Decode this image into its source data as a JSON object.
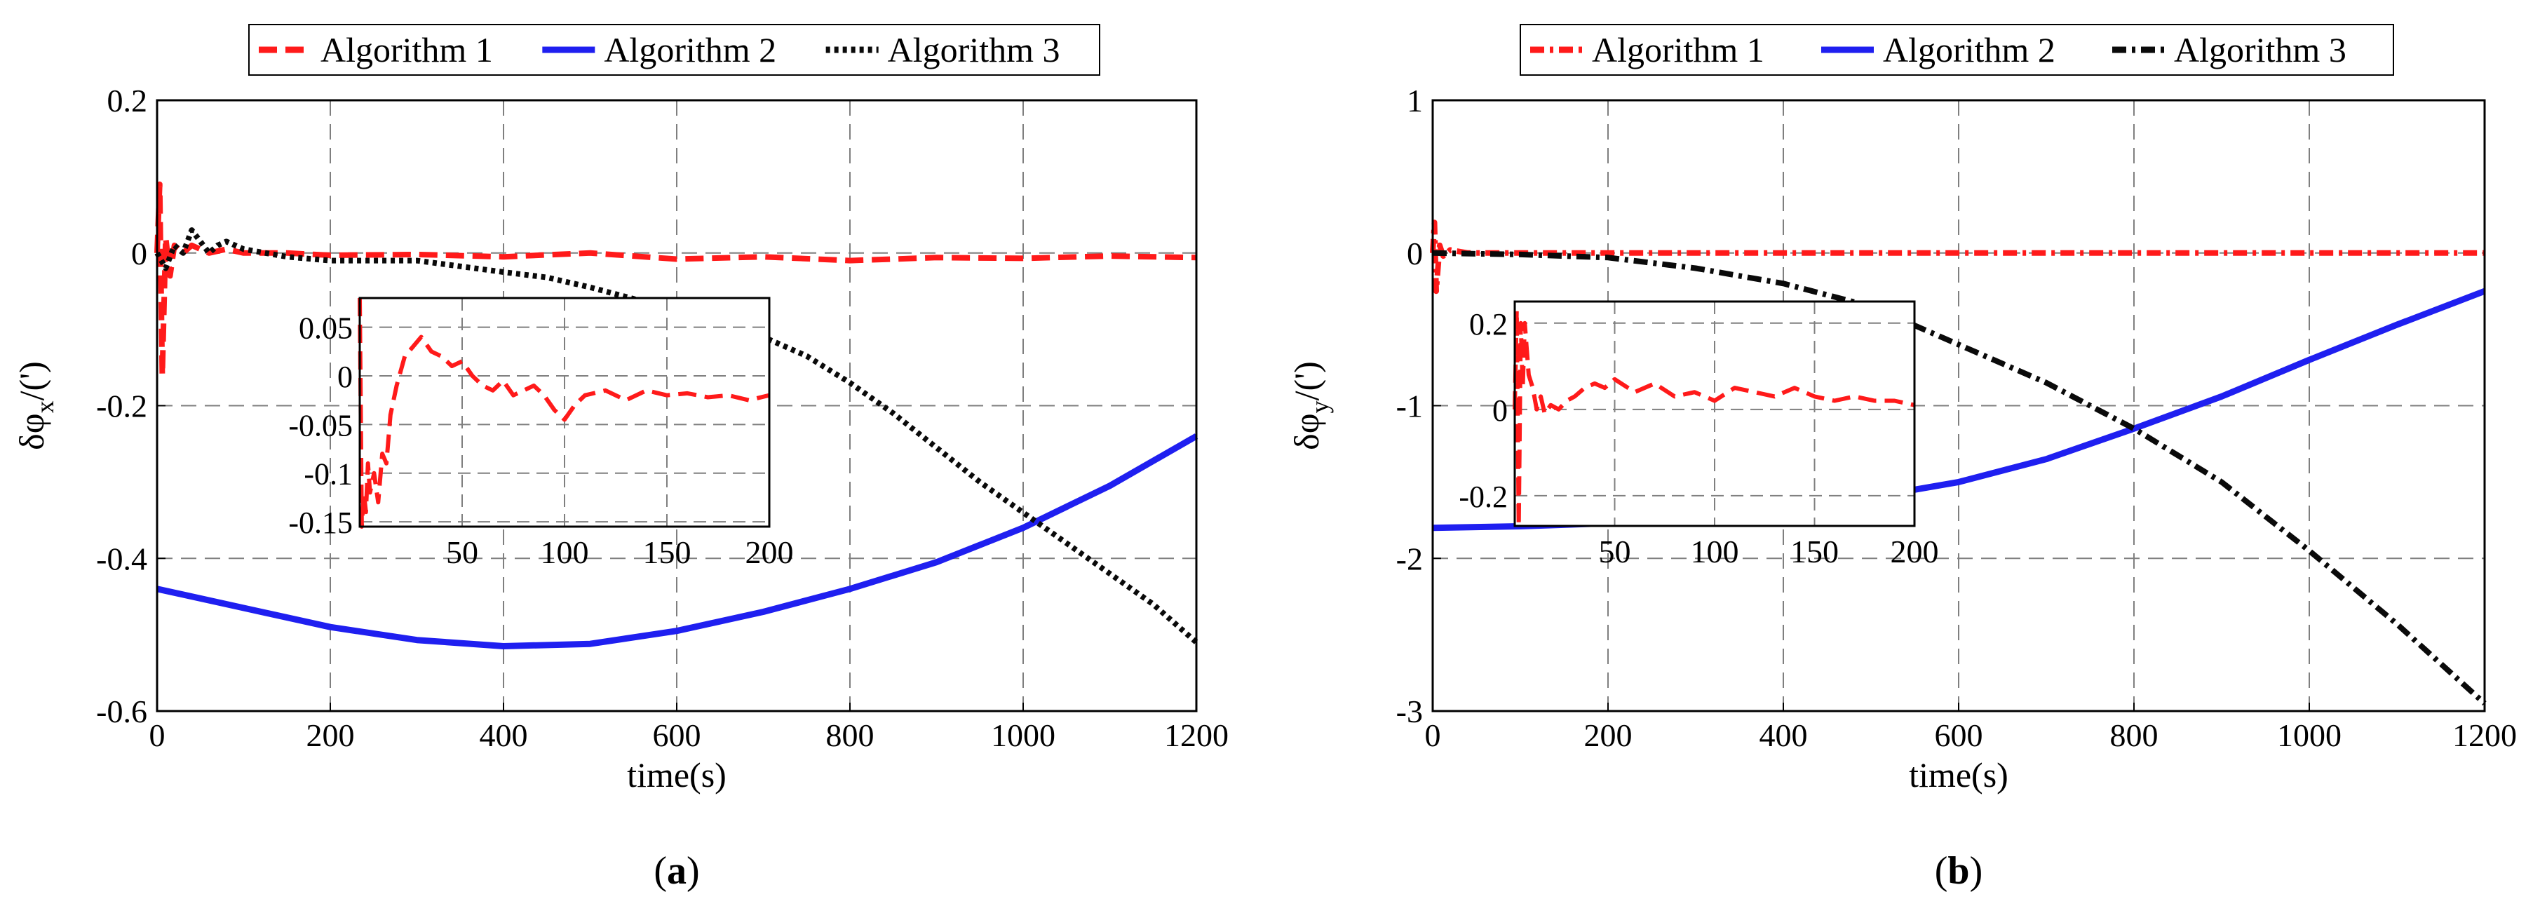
{
  "figure": {
    "panels": [
      "(a)",
      "(b)"
    ]
  },
  "colors": {
    "algorithm1": "#ff1a1a",
    "algorithm2": "#1f1ff0",
    "algorithm3": "#0a0a0a",
    "grid": "#7f7f7f"
  },
  "chart_data": [
    {
      "type": "line",
      "panel_label": "(a)",
      "xlabel": "time(s)",
      "ylabel_base": "δφ",
      "ylabel_sub": "x",
      "ylabel_suffix": "/(')",
      "xlim": [
        0,
        1200
      ],
      "ylim": [
        -0.6,
        0.2
      ],
      "xticks": [
        0,
        200,
        400,
        600,
        800,
        1000,
        1200
      ],
      "xtick_labels": [
        "0",
        "200",
        "400",
        "600",
        "800",
        "1000",
        "1200"
      ],
      "yticks": [
        0.2,
        0,
        -0.2,
        -0.4,
        -0.6
      ],
      "ytick_labels": [
        "0.2",
        "0",
        "-0.2",
        "-0.4",
        "-0.6"
      ],
      "grid": true,
      "legend": [
        "Algorithm 1",
        "Algorithm 2",
        "Algorithm 3"
      ],
      "legend_position": "top",
      "series": [
        {
          "name": "Algorithm 1",
          "style": "dashed",
          "x": [
            0,
            3,
            6,
            10,
            15,
            20,
            30,
            40,
            60,
            80,
            100,
            150,
            200,
            300,
            400,
            500,
            600,
            700,
            800,
            900,
            1000,
            1100,
            1200
          ],
          "y": [
            0.0,
            0.09,
            -0.16,
            0.02,
            -0.03,
            0.01,
            0.0,
            0.01,
            0.0,
            0.005,
            0.0,
            0.0,
            -0.003,
            -0.002,
            -0.005,
            0.0,
            -0.008,
            -0.005,
            -0.01,
            -0.006,
            -0.007,
            -0.004,
            -0.006
          ]
        },
        {
          "name": "Algorithm 2",
          "style": "solid",
          "x": [
            0,
            100,
            200,
            300,
            400,
            500,
            600,
            700,
            800,
            900,
            1000,
            1100,
            1200
          ],
          "y": [
            -0.44,
            -0.465,
            -0.49,
            -0.507,
            -0.515,
            -0.512,
            -0.495,
            -0.47,
            -0.44,
            -0.405,
            -0.36,
            -0.305,
            -0.24
          ]
        },
        {
          "name": "Algorithm 3",
          "style": "dotted",
          "x": [
            0,
            10,
            20,
            30,
            40,
            50,
            60,
            70,
            80,
            90,
            100,
            150,
            200,
            300,
            400,
            450,
            500,
            550,
            600,
            650,
            700,
            750,
            800,
            850,
            900,
            950,
            1000,
            1050,
            1100,
            1150,
            1200
          ],
          "y": [
            0.0,
            -0.02,
            0.01,
            0.0,
            0.03,
            0.015,
            0.0,
            0.01,
            0.015,
            0.01,
            0.005,
            -0.005,
            -0.01,
            -0.01,
            -0.025,
            -0.032,
            -0.045,
            -0.06,
            -0.08,
            -0.095,
            -0.11,
            -0.135,
            -0.17,
            -0.21,
            -0.255,
            -0.3,
            -0.34,
            -0.38,
            -0.42,
            -0.46,
            -0.51
          ]
        }
      ],
      "inset": {
        "xlim": [
          0,
          200
        ],
        "ylim": [
          -0.155,
          0.08
        ],
        "xticks": [
          50,
          100,
          150,
          200
        ],
        "xtick_labels": [
          "50",
          "100",
          "150",
          "200"
        ],
        "yticks": [
          0.05,
          0,
          -0.05,
          -0.1,
          -0.15
        ],
        "ytick_labels": [
          "0.05",
          "0",
          "-0.05",
          "-0.1",
          "-0.15"
        ],
        "series": {
          "name": "Algorithm 1",
          "style": "dashed",
          "x": [
            0,
            1,
            2,
            3,
            4,
            5,
            7,
            9,
            11,
            13,
            15,
            18,
            22,
            26,
            30,
            35,
            40,
            45,
            50,
            55,
            60,
            65,
            70,
            75,
            80,
            85,
            90,
            95,
            100,
            105,
            110,
            120,
            130,
            140,
            150,
            160,
            170,
            180,
            190,
            200
          ],
          "y": [
            0.08,
            -0.155,
            -0.12,
            -0.14,
            -0.09,
            -0.12,
            -0.1,
            -0.13,
            -0.08,
            -0.09,
            -0.04,
            -0.01,
            0.02,
            0.03,
            0.04,
            0.025,
            0.02,
            0.01,
            0.015,
            0.0,
            -0.01,
            -0.015,
            -0.005,
            -0.02,
            -0.015,
            -0.01,
            -0.02,
            -0.035,
            -0.045,
            -0.03,
            -0.02,
            -0.015,
            -0.025,
            -0.015,
            -0.02,
            -0.018,
            -0.022,
            -0.02,
            -0.025,
            -0.02
          ]
        }
      }
    },
    {
      "type": "line",
      "panel_label": "(b)",
      "xlabel": "time(s)",
      "ylabel_base": "δφ",
      "ylabel_sub": "y",
      "ylabel_suffix": "/(')",
      "xlim": [
        0,
        1200
      ],
      "ylim": [
        -3,
        1
      ],
      "xticks": [
        0,
        200,
        400,
        600,
        800,
        1000,
        1200
      ],
      "xtick_labels": [
        "0",
        "200",
        "400",
        "600",
        "800",
        "1000",
        "1200"
      ],
      "yticks": [
        1,
        0,
        -1,
        -2,
        -3
      ],
      "ytick_labels": [
        "1",
        "0",
        "-1",
        "-2",
        "-3"
      ],
      "grid": true,
      "legend": [
        "Algorithm 1",
        "Algorithm 2",
        "Algorithm 3"
      ],
      "legend_position": "top",
      "series": [
        {
          "name": "Algorithm 1",
          "style": "dashdot",
          "x": [
            0,
            2,
            4,
            8,
            12,
            20,
            40,
            100,
            200,
            400,
            600,
            800,
            1000,
            1200
          ],
          "y": [
            0.0,
            0.2,
            -0.25,
            0.05,
            -0.02,
            0.02,
            0.0,
            0.0,
            0.0,
            0.0,
            0.0,
            0.0,
            0.0,
            0.0
          ]
        },
        {
          "name": "Algorithm 2",
          "style": "solid",
          "x": [
            0,
            100,
            200,
            300,
            400,
            500,
            600,
            700,
            800,
            900,
            1000,
            1100,
            1200
          ],
          "y": [
            -1.8,
            -1.79,
            -1.77,
            -1.73,
            -1.68,
            -1.6,
            -1.5,
            -1.35,
            -1.15,
            -0.94,
            -0.7,
            -0.47,
            -0.25
          ]
        },
        {
          "name": "Algorithm 3",
          "style": "dashdot",
          "x": [
            0,
            100,
            200,
            300,
            400,
            500,
            600,
            700,
            800,
            900,
            1000,
            1100,
            1200
          ],
          "y": [
            0.0,
            -0.01,
            -0.03,
            -0.1,
            -0.2,
            -0.35,
            -0.6,
            -0.85,
            -1.15,
            -1.5,
            -1.95,
            -2.43,
            -2.95
          ]
        }
      ],
      "inset": {
        "xlim": [
          0,
          200
        ],
        "ylim": [
          -0.27,
          0.25
        ],
        "xticks": [
          50,
          100,
          150,
          200
        ],
        "xtick_labels": [
          "50",
          "100",
          "150",
          "200"
        ],
        "yticks": [
          0.2,
          0,
          -0.2
        ],
        "ytick_labels": [
          "0.2",
          "0",
          "-0.2"
        ],
        "series": {
          "name": "Algorithm 1",
          "style": "dashed",
          "x": [
            0,
            1,
            2,
            3,
            4,
            5,
            7,
            9,
            11,
            13,
            15,
            18,
            22,
            26,
            30,
            35,
            40,
            45,
            50,
            60,
            70,
            80,
            90,
            100,
            110,
            120,
            130,
            140,
            150,
            160,
            170,
            180,
            190,
            200
          ],
          "y": [
            0.0,
            0.23,
            -0.27,
            0.2,
            0.05,
            0.2,
            0.08,
            0.05,
            0.0,
            0.03,
            -0.01,
            0.01,
            0.0,
            0.02,
            0.03,
            0.05,
            0.06,
            0.05,
            0.07,
            0.04,
            0.06,
            0.03,
            0.04,
            0.02,
            0.05,
            0.04,
            0.03,
            0.05,
            0.03,
            0.02,
            0.03,
            0.02,
            0.02,
            0.01
          ]
        }
      }
    }
  ]
}
